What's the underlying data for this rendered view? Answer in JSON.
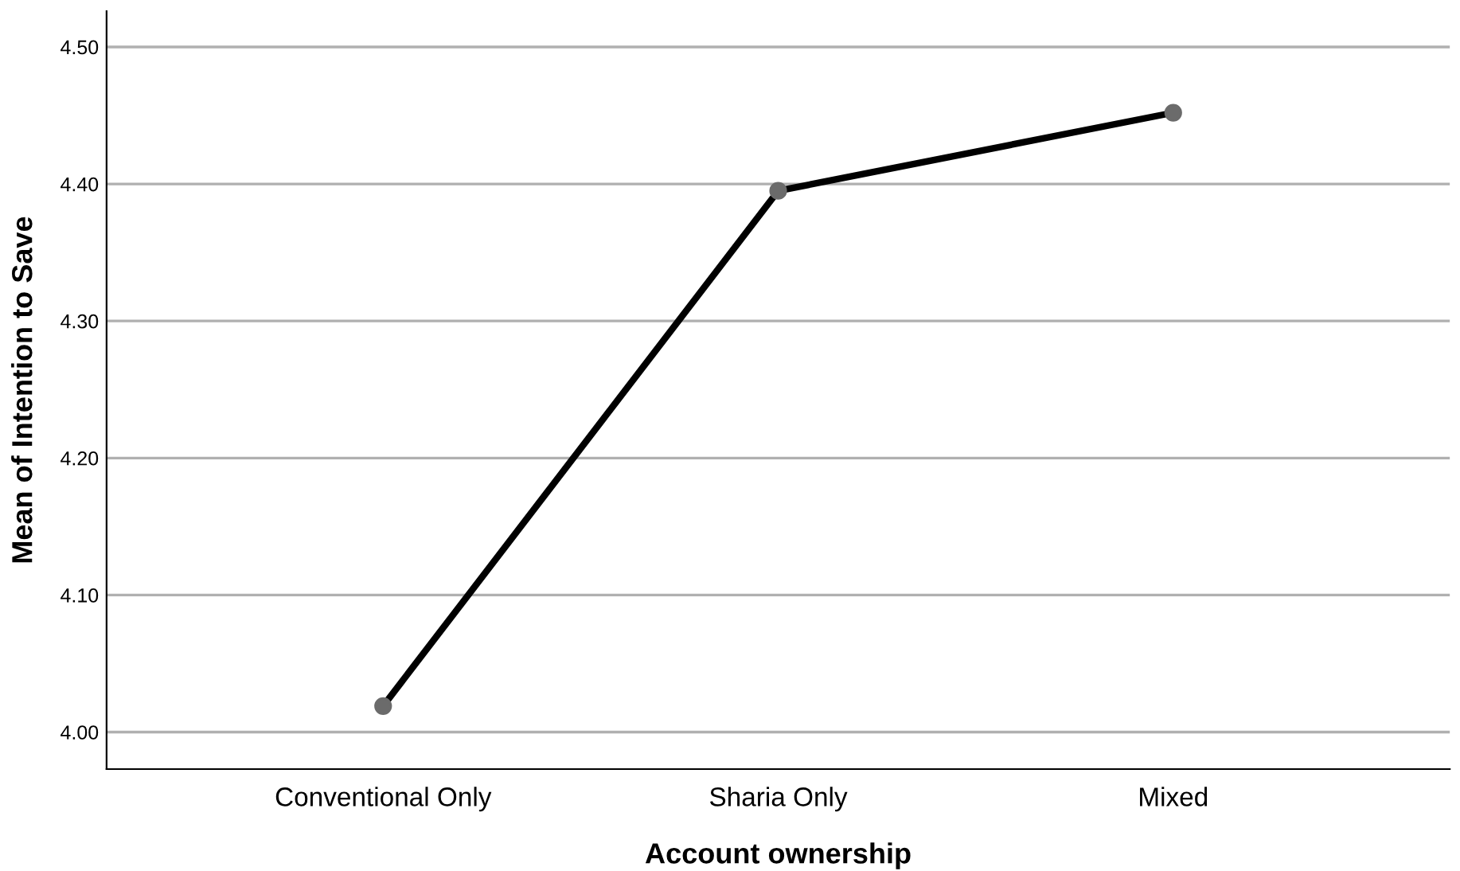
{
  "chart_data": {
    "type": "line",
    "xlabel": "Account ownership",
    "ylabel": "Mean of Intention to Save",
    "categories": [
      "Conventional Only",
      "Sharia Only",
      "Mixed"
    ],
    "series": [
      {
        "color": "#000000",
        "values": [
          4.019,
          4.395,
          4.452
        ]
      }
    ],
    "ylim": [
      3.973,
      4.526
    ],
    "yticks": [
      {
        "value": 4.0,
        "label": "4.00"
      },
      {
        "value": 4.1,
        "label": "4.10"
      },
      {
        "value": 4.2,
        "label": "4.20"
      },
      {
        "value": 4.3,
        "label": "4.30"
      },
      {
        "value": 4.4,
        "label": "4.40"
      },
      {
        "value": 4.5,
        "label": "4.50"
      }
    ],
    "grid": "y",
    "marker": "circle",
    "line_style": "solid"
  }
}
